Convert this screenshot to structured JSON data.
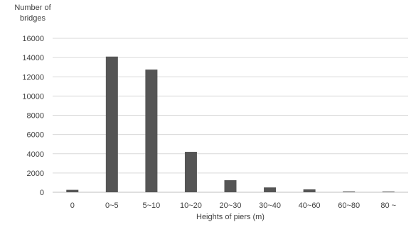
{
  "chart_data": {
    "type": "bar",
    "title": "",
    "ylabel": [
      "Number of",
      "bridges"
    ],
    "xlabel": "Heights of piers (m)",
    "categories": [
      "0",
      "0~5",
      "5~10",
      "10~20",
      "20~30",
      "30~40",
      "40~60",
      "60~80",
      "80 ~"
    ],
    "values": [
      250,
      14100,
      12750,
      4200,
      1250,
      500,
      300,
      80,
      70
    ],
    "ylim": [
      0,
      16000
    ],
    "yticks": [
      0,
      2000,
      4000,
      6000,
      8000,
      10000,
      12000,
      14000,
      16000
    ],
    "grid": true,
    "bar_color": "#555555",
    "grid_color": "#d9d9d9"
  }
}
